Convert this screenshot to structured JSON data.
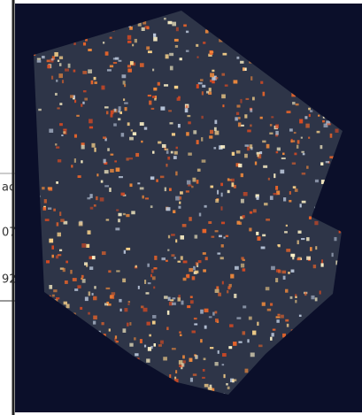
{
  "document": {
    "cells": [
      "ac",
      "07",
      "92"
    ]
  }
}
